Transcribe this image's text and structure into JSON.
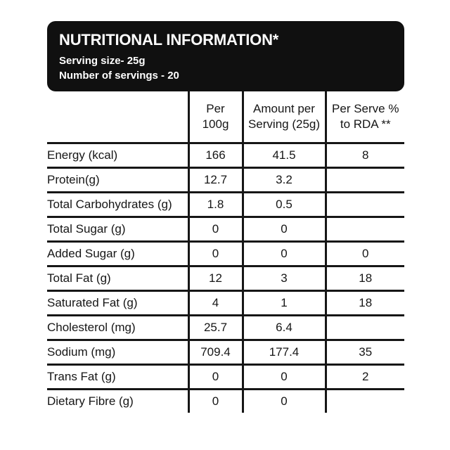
{
  "header": {
    "title": "NUTRITIONAL INFORMATION*",
    "serving_size": "Serving size- 25g",
    "servings": "Number of servings - 20"
  },
  "table": {
    "columns": [
      "Per\n100g",
      "Amount per\nServing (25g)",
      "Per Serve %\nto RDA **"
    ],
    "rows": [
      {
        "label": "Energy (kcal)",
        "values": [
          "166",
          "41.5",
          "8"
        ]
      },
      {
        "label": "Protein(g)",
        "values": [
          "12.7",
          "3.2",
          ""
        ]
      },
      {
        "label": "Total Carbohydrates (g)",
        "values": [
          "1.8",
          "0.5",
          ""
        ]
      },
      {
        "label": "Total Sugar (g)",
        "values": [
          "0",
          "0",
          ""
        ]
      },
      {
        "label": "Added Sugar (g)",
        "values": [
          "0",
          "0",
          "0"
        ]
      },
      {
        "label": "Total Fat (g)",
        "values": [
          "12",
          "3",
          "18"
        ]
      },
      {
        "label": "Saturated Fat (g)",
        "values": [
          "4",
          "1",
          "18"
        ]
      },
      {
        "label": "Cholesterol (mg)",
        "values": [
          "25.7",
          "6.4",
          ""
        ]
      },
      {
        "label": "Sodium (mg)",
        "values": [
          "709.4",
          "177.4",
          "35"
        ]
      },
      {
        "label": "Trans Fat (g)",
        "values": [
          "0",
          "0",
          "2"
        ]
      },
      {
        "label": "Dietary Fibre (g)",
        "values": [
          "0",
          "0",
          ""
        ]
      }
    ]
  },
  "colors": {
    "header_bg": "#101010",
    "line": "#161616",
    "text": "#161616",
    "header_text": "#ffffff",
    "page_bg": "#ffffff"
  }
}
